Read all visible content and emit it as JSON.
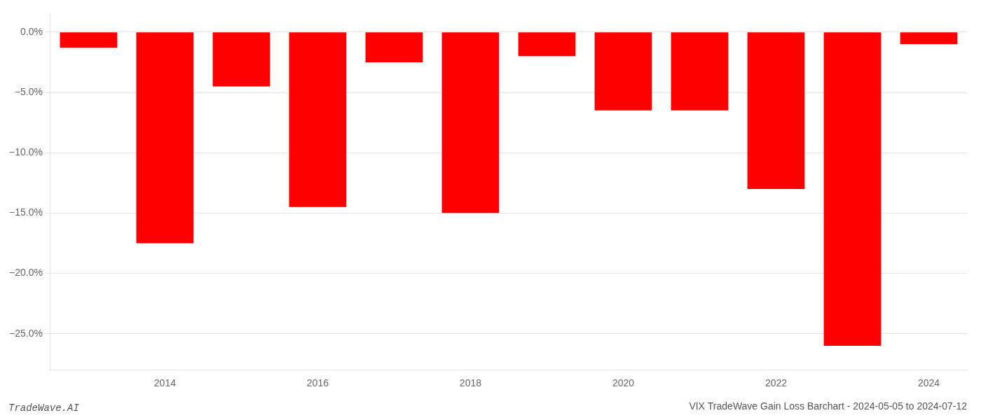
{
  "chart_data": {
    "type": "bar",
    "title": "VIX TradeWave Gain Loss Barchart - 2024-05-05 to 2024-07-12",
    "annotations": [
      {
        "text": "TradeWave.AI"
      }
    ],
    "categories": [
      null,
      "2014",
      null,
      "2016",
      null,
      "2018",
      null,
      "2020",
      null,
      "2022",
      null,
      "2024"
    ],
    "values": [
      -1.3,
      -17.5,
      -4.5,
      -14.5,
      -2.5,
      -15.0,
      -2.0,
      -6.5,
      -6.5,
      -13.0,
      -26.0,
      -1.0
    ],
    "color": "#ff0000",
    "ylim": [
      -28,
      1.5
    ],
    "yticks": [
      {
        "value": 0.0,
        "label": "0.0%"
      },
      {
        "value": -5.0,
        "label": "−5.0%"
      },
      {
        "value": -10.0,
        "label": "−10.0%"
      },
      {
        "value": -15.0,
        "label": "−15.0%"
      },
      {
        "value": -20.0,
        "label": "−20.0%"
      },
      {
        "value": -25.0,
        "label": "−25.0%"
      }
    ],
    "grid": true
  }
}
